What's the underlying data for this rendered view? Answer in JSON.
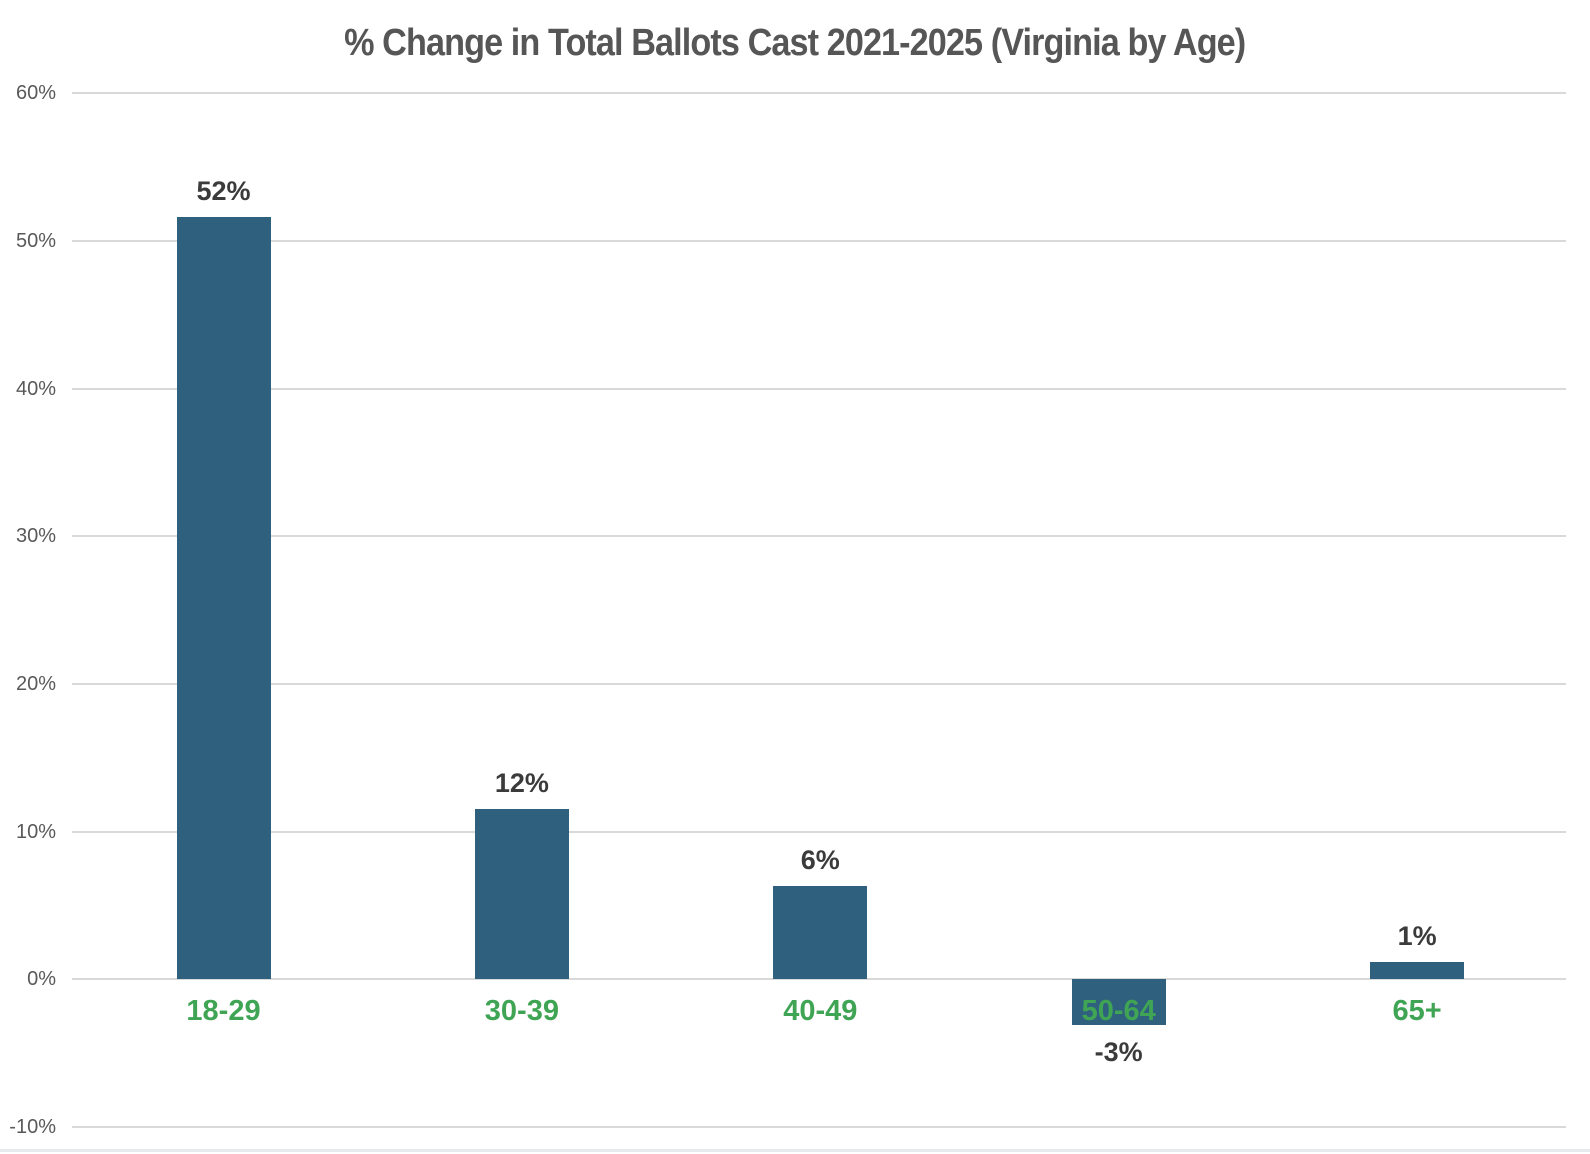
{
  "page": {
    "background": "#FFFFFF"
  },
  "chart_data": {
    "type": "bar",
    "title": "% Change in Total Ballots Cast 2021-2025 (Virginia by Age)",
    "categories": [
      "18-29",
      "30-39",
      "40-49",
      "50-64",
      "65+"
    ],
    "values": [
      52,
      12,
      6,
      -3,
      1
    ],
    "value_labels": [
      "52%",
      "12%",
      "6%",
      "-3%",
      "1%"
    ],
    "bar_plot_values": [
      51.6,
      11.5,
      6.3,
      -3.1,
      1.2
    ],
    "xlabel": "",
    "ylabel": "",
    "ylim": [
      -10,
      60
    ],
    "yticks": [
      60,
      50,
      40,
      30,
      20,
      10,
      0,
      -10
    ],
    "ytick_labels": [
      "60%",
      "50%",
      "40%",
      "30%",
      "20%",
      "10%",
      "0%",
      "-10%"
    ],
    "grid": true,
    "legend": false,
    "colors": {
      "bar": "#2F617F",
      "category_label": "#3FA554",
      "value_label": "#3B3B3B",
      "title": "#565656",
      "tick_label": "#595959",
      "gridline": "#D9D9D9",
      "baseline_strip": "#E7E9EB"
    }
  }
}
